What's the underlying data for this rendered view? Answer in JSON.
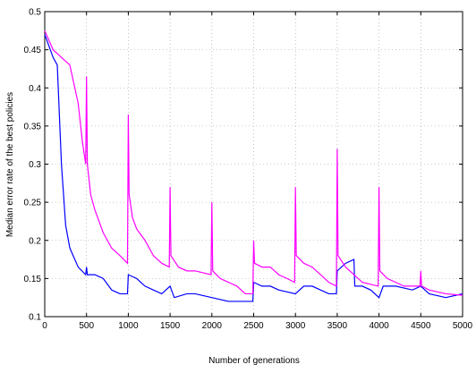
{
  "chart_data": {
    "type": "line",
    "xlabel": "Number of generations",
    "ylabel": "Median error rate of the best policies",
    "xlim": [
      0,
      5000
    ],
    "ylim": [
      0.1,
      0.5
    ],
    "xticks": [
      0,
      500,
      1000,
      1500,
      2000,
      2500,
      3000,
      3500,
      4000,
      4500,
      5000
    ],
    "yticks": [
      0.1,
      0.15,
      0.2,
      0.25,
      0.3,
      0.35,
      0.4,
      0.45,
      0.5
    ],
    "grid": true,
    "series": [
      {
        "color": "#0000ff",
        "x": [
          0,
          100,
          150,
          200,
          250,
          300,
          400,
          490,
          500,
          510,
          600,
          700,
          800,
          900,
          990,
          1000,
          1100,
          1200,
          1300,
          1400,
          1500,
          1550,
          1700,
          1800,
          2000,
          2200,
          2400,
          2490,
          2500,
          2600,
          2700,
          2800,
          3000,
          3100,
          3200,
          3300,
          3400,
          3490,
          3500,
          3600,
          3700,
          3710,
          3800,
          3900,
          4000,
          4050,
          4200,
          4400,
          4500,
          4600,
          4800,
          5000
        ],
        "values": [
          0.47,
          0.44,
          0.43,
          0.3,
          0.22,
          0.19,
          0.165,
          0.155,
          0.165,
          0.155,
          0.155,
          0.15,
          0.135,
          0.13,
          0.13,
          0.155,
          0.15,
          0.14,
          0.135,
          0.13,
          0.14,
          0.125,
          0.13,
          0.13,
          0.125,
          0.12,
          0.12,
          0.12,
          0.145,
          0.14,
          0.14,
          0.135,
          0.13,
          0.14,
          0.14,
          0.135,
          0.13,
          0.13,
          0.16,
          0.17,
          0.175,
          0.14,
          0.14,
          0.135,
          0.125,
          0.14,
          0.14,
          0.135,
          0.14,
          0.13,
          0.125,
          0.13
        ]
      },
      {
        "color": "#ff00ff",
        "x": [
          0,
          100,
          200,
          300,
          400,
          450,
          490,
          500,
          510,
          550,
          600,
          700,
          800,
          900,
          990,
          1000,
          1010,
          1050,
          1100,
          1200,
          1300,
          1400,
          1490,
          1500,
          1510,
          1600,
          1700,
          1800,
          1990,
          2000,
          2010,
          2100,
          2200,
          2300,
          2400,
          2490,
          2500,
          2510,
          2600,
          2700,
          2800,
          2900,
          2990,
          3000,
          3010,
          3100,
          3200,
          3300,
          3400,
          3490,
          3500,
          3510,
          3600,
          3700,
          3800,
          3990,
          4000,
          4010,
          4100,
          4200,
          4300,
          4490,
          4500,
          4510,
          4600,
          4800,
          5000
        ],
        "values": [
          0.475,
          0.45,
          0.44,
          0.43,
          0.38,
          0.33,
          0.3,
          0.415,
          0.3,
          0.26,
          0.24,
          0.21,
          0.19,
          0.18,
          0.17,
          0.365,
          0.26,
          0.23,
          0.215,
          0.2,
          0.18,
          0.17,
          0.165,
          0.27,
          0.18,
          0.165,
          0.16,
          0.16,
          0.155,
          0.25,
          0.16,
          0.15,
          0.145,
          0.14,
          0.13,
          0.13,
          0.2,
          0.17,
          0.165,
          0.165,
          0.155,
          0.15,
          0.145,
          0.27,
          0.18,
          0.17,
          0.165,
          0.155,
          0.145,
          0.14,
          0.32,
          0.18,
          0.165,
          0.155,
          0.145,
          0.14,
          0.27,
          0.16,
          0.15,
          0.145,
          0.14,
          0.14,
          0.16,
          0.14,
          0.135,
          0.13,
          0.128
        ]
      }
    ]
  }
}
